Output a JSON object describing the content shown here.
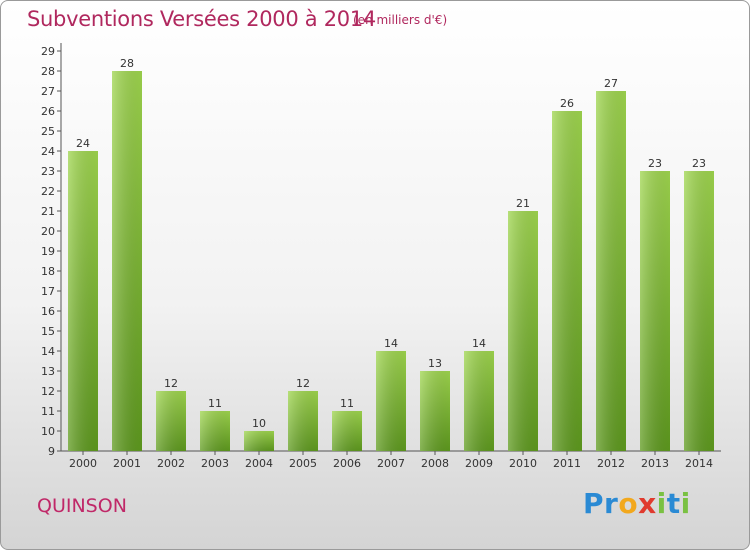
{
  "chart_data": {
    "type": "bar",
    "title": "Subventions Versées 2000 à 2014",
    "unit_note": "(en milliers d'€)",
    "categories": [
      "2000",
      "2001",
      "2002",
      "2003",
      "2004",
      "2005",
      "2006",
      "2007",
      "2008",
      "2009",
      "2010",
      "2011",
      "2012",
      "2013",
      "2014"
    ],
    "values": [
      24,
      28,
      12,
      11,
      10,
      12,
      11,
      14,
      13,
      14,
      21,
      26,
      27,
      23,
      23
    ],
    "ylim": [
      9,
      29
    ],
    "yticks": [
      9,
      10,
      11,
      12,
      13,
      14,
      15,
      16,
      17,
      18,
      19,
      20,
      21,
      22,
      23,
      24,
      25,
      26,
      27,
      28,
      29
    ],
    "xlabel": "",
    "ylabel": "",
    "grid": false,
    "data_labels": true,
    "bar_color": "#8cc63f",
    "bar_color_dark": "#5e9a1e"
  },
  "footer": {
    "place": "QUINSON",
    "logo_letters": [
      "P",
      "r",
      "o",
      "x",
      "i",
      "t",
      "i"
    ]
  },
  "colors": {
    "title": "#b0285e",
    "place": "#c02868",
    "background_top": "#ffffff",
    "background_bottom": "#d4d4d4"
  }
}
